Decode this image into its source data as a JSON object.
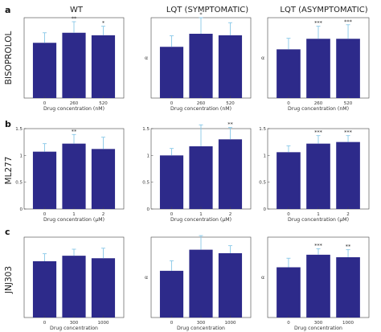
{
  "figure": {
    "column_titles": [
      "WT",
      "LQT (SYMPTOMATIC)",
      "LQT (ASYMPTOMATIC)"
    ],
    "row_letters": [
      "a",
      "b",
      "c"
    ],
    "row_labels": [
      "BISOPROLOL",
      "ML277",
      "JNJ303"
    ],
    "bar_color": "#2d2a8a",
    "error_color": "#88c8e8"
  },
  "chart_data": [
    {
      "type": "bar",
      "title": "WT",
      "row": "BISOPROLOL",
      "categories": [
        "0",
        "260",
        "520"
      ],
      "values": [
        1.1,
        1.3,
        1.25
      ],
      "errors": [
        0.2,
        0.22,
        0.18
      ],
      "significance": [
        "",
        "**",
        "*"
      ],
      "xlabel": "Drug concentration (nM)",
      "ylabel": "",
      "ylim": [
        0,
        1.6
      ],
      "yticks": []
    },
    {
      "type": "bar",
      "title": "LQT (SYMPTOMATIC)",
      "row": "BISOPROLOL",
      "categories": [
        "0",
        "260",
        "520"
      ],
      "values": [
        1.02,
        1.28,
        1.25
      ],
      "errors": [
        0.22,
        0.32,
        0.25
      ],
      "significance": [
        "",
        "*",
        ""
      ],
      "xlabel": "Drug concentration (nM)",
      "ylabel": "α",
      "ylim": [
        0,
        1.6
      ],
      "yticks": []
    },
    {
      "type": "bar",
      "title": "LQT (ASYMPTOMATIC)",
      "row": "BISOPROLOL",
      "categories": [
        "0",
        "260",
        "520"
      ],
      "values": [
        0.97,
        1.18,
        1.18
      ],
      "errors": [
        0.22,
        0.25,
        0.28
      ],
      "significance": [
        "",
        "***",
        "***"
      ],
      "xlabel": "Drug concentration (nM)",
      "ylabel": "α",
      "ylim": [
        0,
        1.6
      ],
      "yticks": []
    },
    {
      "type": "bar",
      "title": "WT",
      "row": "ML277",
      "categories": [
        "0",
        "1",
        "2"
      ],
      "values": [
        1.07,
        1.22,
        1.12
      ],
      "errors": [
        0.15,
        0.17,
        0.22
      ],
      "significance": [
        "",
        "**",
        ""
      ],
      "xlabel": "Drug concentration (μM)",
      "ylabel": "",
      "ylim": [
        0,
        1.5
      ],
      "yticks": [
        0,
        0.5,
        1,
        1.5
      ]
    },
    {
      "type": "bar",
      "title": "LQT (SYMPTOMATIC)",
      "row": "ML277",
      "categories": [
        "0",
        "1",
        "2"
      ],
      "values": [
        1.0,
        1.17,
        1.3
      ],
      "errors": [
        0.13,
        0.4,
        0.22
      ],
      "significance": [
        "",
        "",
        "**"
      ],
      "xlabel": "Drug concentration (μM)",
      "ylabel": "",
      "ylim": [
        0,
        1.5
      ],
      "yticks": [
        0,
        0.5,
        1,
        1.5
      ]
    },
    {
      "type": "bar",
      "title": "LQT (ASYMPTOMATIC)",
      "row": "ML277",
      "categories": [
        "0",
        "1",
        "2"
      ],
      "values": [
        1.06,
        1.22,
        1.25
      ],
      "errors": [
        0.12,
        0.15,
        0.12
      ],
      "significance": [
        "",
        "***",
        "***"
      ],
      "xlabel": "Drug concentration (μM)",
      "ylabel": "",
      "ylim": [
        0,
        1.5
      ],
      "yticks": [
        0,
        0.5,
        1,
        1.5
      ]
    },
    {
      "type": "bar",
      "title": "WT",
      "row": "JNJ303",
      "categories": [
        "0",
        "300",
        "1000"
      ],
      "values": [
        1.12,
        1.23,
        1.18
      ],
      "errors": [
        0.15,
        0.13,
        0.2
      ],
      "significance": [
        "",
        "",
        ""
      ],
      "xlabel": "Drug concentration",
      "ylabel": "",
      "ylim": [
        0,
        1.6
      ],
      "yticks": []
    },
    {
      "type": "bar",
      "title": "LQT (SYMPTOMATIC)",
      "row": "JNJ303",
      "categories": [
        "0",
        "300",
        "1000"
      ],
      "values": [
        0.93,
        1.35,
        1.28
      ],
      "errors": [
        0.2,
        0.28,
        0.15
      ],
      "significance": [
        "",
        "",
        ""
      ],
      "xlabel": "Drug concentration",
      "ylabel": "α",
      "ylim": [
        0,
        1.6
      ],
      "yticks": []
    },
    {
      "type": "bar",
      "title": "LQT (ASYMPTOMATIC)",
      "row": "JNJ303",
      "categories": [
        "0",
        "300",
        "1000"
      ],
      "values": [
        1.0,
        1.25,
        1.2
      ],
      "errors": [
        0.18,
        0.12,
        0.15
      ],
      "significance": [
        "",
        "***",
        "**"
      ],
      "xlabel": "Drug concentration",
      "ylabel": "α",
      "ylim": [
        0,
        1.6
      ],
      "yticks": []
    }
  ]
}
